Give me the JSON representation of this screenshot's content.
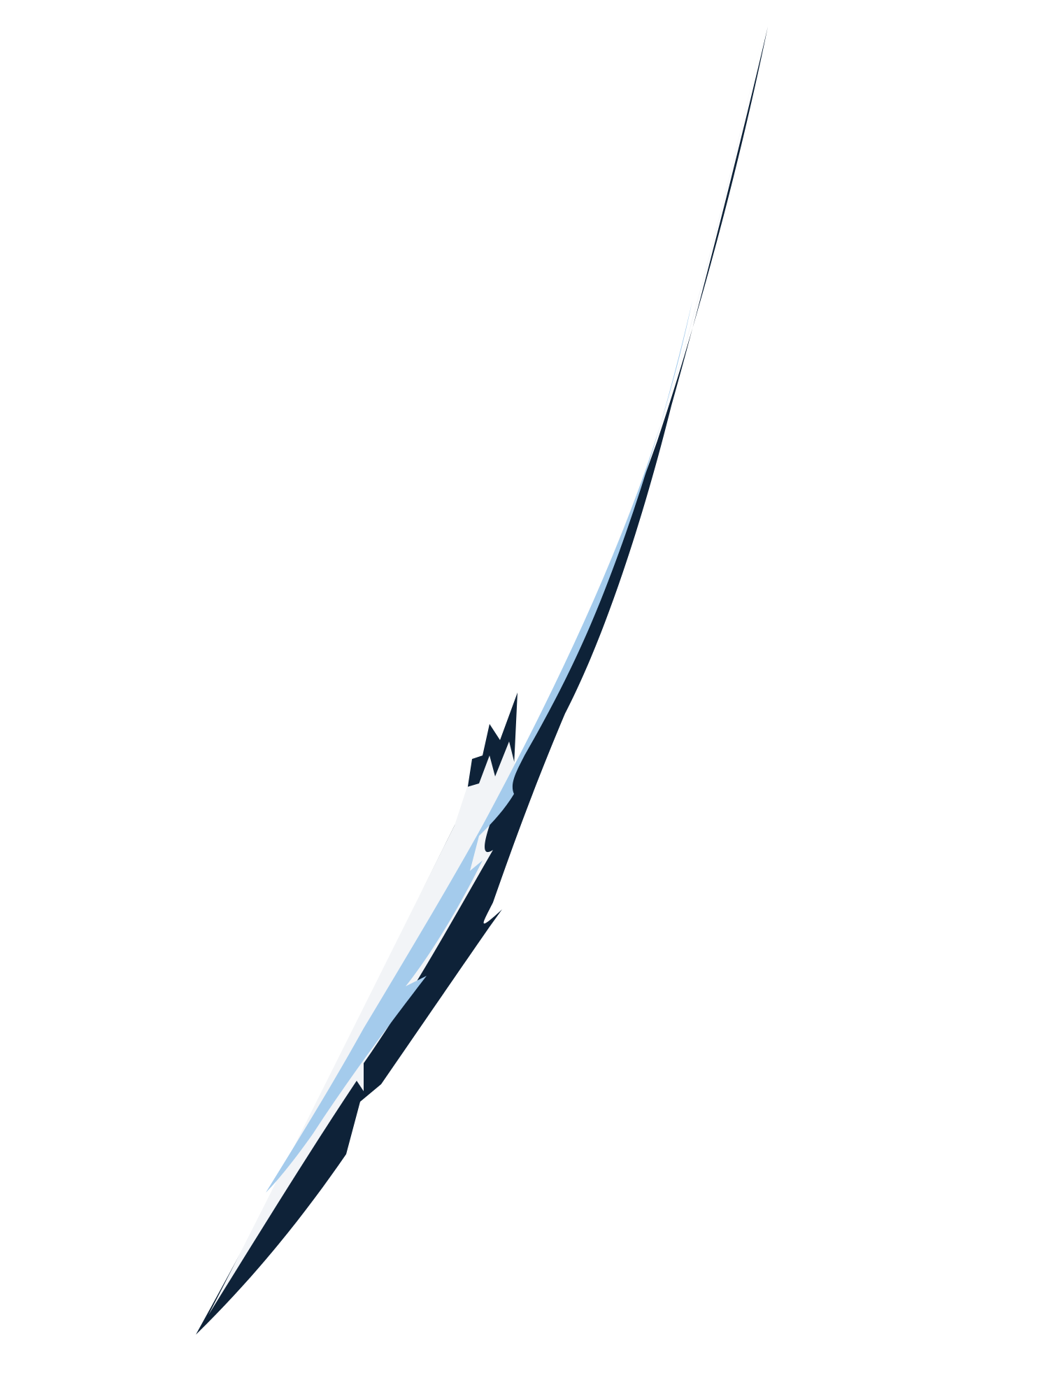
{
  "artwork": {
    "subject": "slash-streak",
    "colors": {
      "background": "#ffffff",
      "outline": "#0e2238",
      "highlight": "#f2f4f7",
      "fill": "#a4cbec"
    }
  }
}
